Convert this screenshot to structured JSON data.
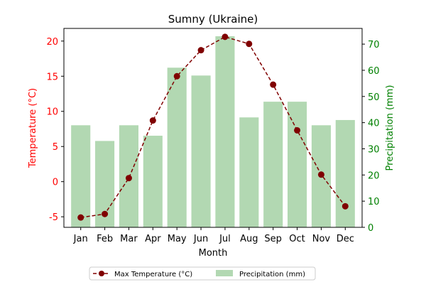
{
  "chart_data": {
    "type": "bar+line",
    "title": "Sumny (Ukraine)",
    "xlabel": "Month",
    "ylabel_left": "Temperature (°C)",
    "ylabel_right": "Precipitation (mm)",
    "categories": [
      "Jan",
      "Feb",
      "Mar",
      "Apr",
      "May",
      "Jun",
      "Jul",
      "Aug",
      "Sep",
      "Oct",
      "Nov",
      "Dec"
    ],
    "ylim_left": [
      -6.5,
      21.8
    ],
    "ylim_right": [
      0,
      76
    ],
    "yticks_left": [
      -5,
      0,
      5,
      10,
      15,
      20
    ],
    "yticks_right": [
      0,
      10,
      20,
      30,
      40,
      50,
      60,
      70
    ],
    "series": [
      {
        "name": "Max Temperature (°C)",
        "type": "line",
        "axis": "left",
        "color": "#800000",
        "values": [
          -5.1,
          -4.6,
          0.5,
          8.7,
          15.0,
          18.7,
          20.6,
          19.6,
          13.8,
          7.3,
          1.0,
          -3.5
        ]
      },
      {
        "name": "Precipitation (mm)",
        "type": "bar",
        "axis": "right",
        "color": "#b2d8b2",
        "values": [
          39,
          33,
          39,
          35,
          61,
          58,
          73,
          42,
          48,
          48,
          39,
          41
        ]
      }
    ],
    "left_axis_color": "#ff0000",
    "right_axis_color": "#008000",
    "grid": false,
    "legend_position": "bottom-center"
  }
}
